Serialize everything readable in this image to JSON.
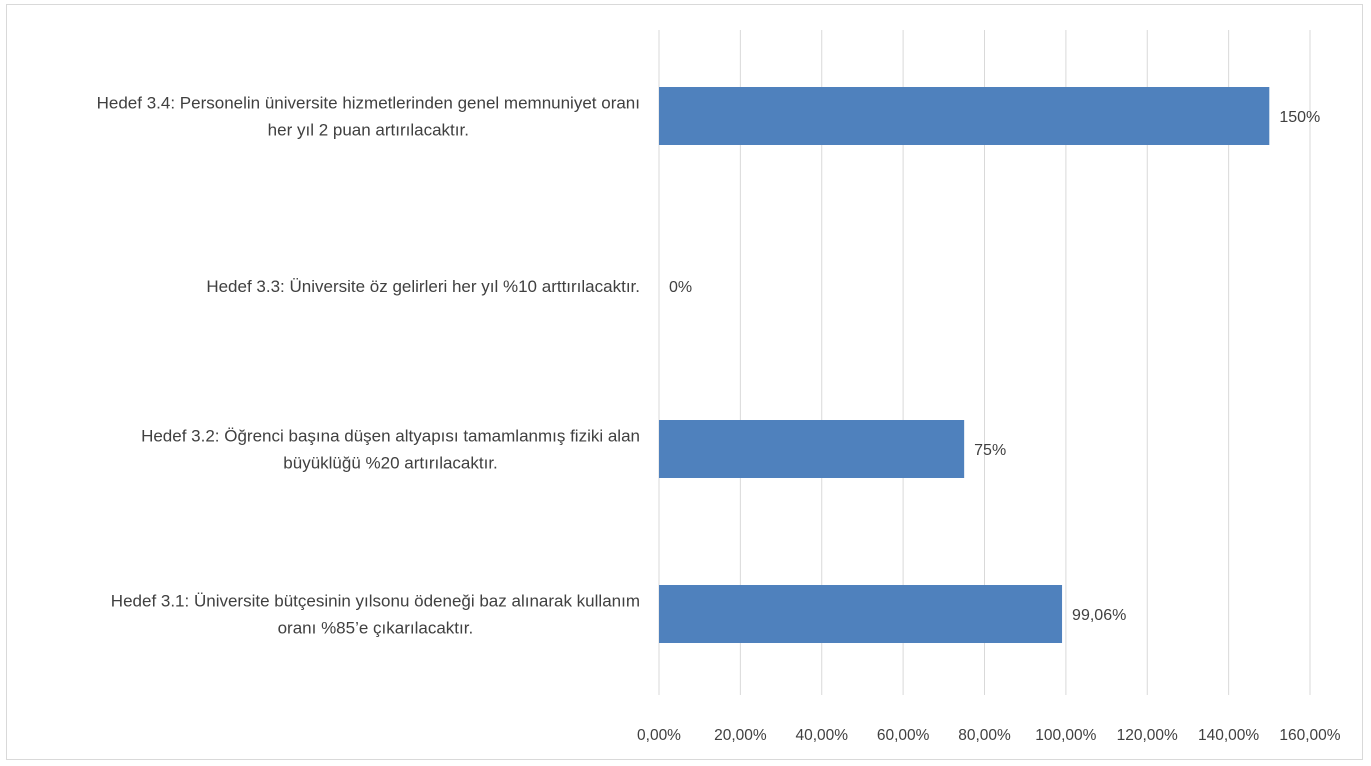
{
  "chart_data": {
    "type": "bar",
    "orientation": "horizontal",
    "categories": [
      [
        "Hedef 3.4: Personelin üniversite hizmetlerinden genel memnuniyet oranı",
        "her yıl 2 puan artırılacaktır."
      ],
      [
        "Hedef 3.3: Üniversite öz gelirleri her yıl %10 arttırılacaktır."
      ],
      [
        "Hedef 3.2: Öğrenci başına düşen altyapısı tamamlanmış fiziki alan",
        "büyüklüğü %20 artırılacaktır."
      ],
      [
        "Hedef 3.1: Üniversite bütçesinin yılsonu ödeneği baz alınarak kullanım",
        "oranı %85’e çıkarılacaktır."
      ]
    ],
    "values": [
      150,
      0,
      75,
      99.06
    ],
    "data_labels": [
      "150%",
      "0%",
      "75%",
      "99,06%"
    ],
    "xlim": [
      0,
      160
    ],
    "x_ticks": [
      0,
      20,
      40,
      60,
      80,
      100,
      120,
      140,
      160
    ],
    "x_tick_labels": [
      "0,00%",
      "20,00%",
      "40,00%",
      "60,00%",
      "80,00%",
      "100,00%",
      "120,00%",
      "140,00%",
      "160,00%"
    ],
    "title": "",
    "xlabel": "",
    "ylabel": "",
    "grid": "vertical",
    "legend": "none",
    "bar_color": "#4f81bd",
    "grid_color": "#d9d9d9",
    "text_color": "#404040"
  }
}
